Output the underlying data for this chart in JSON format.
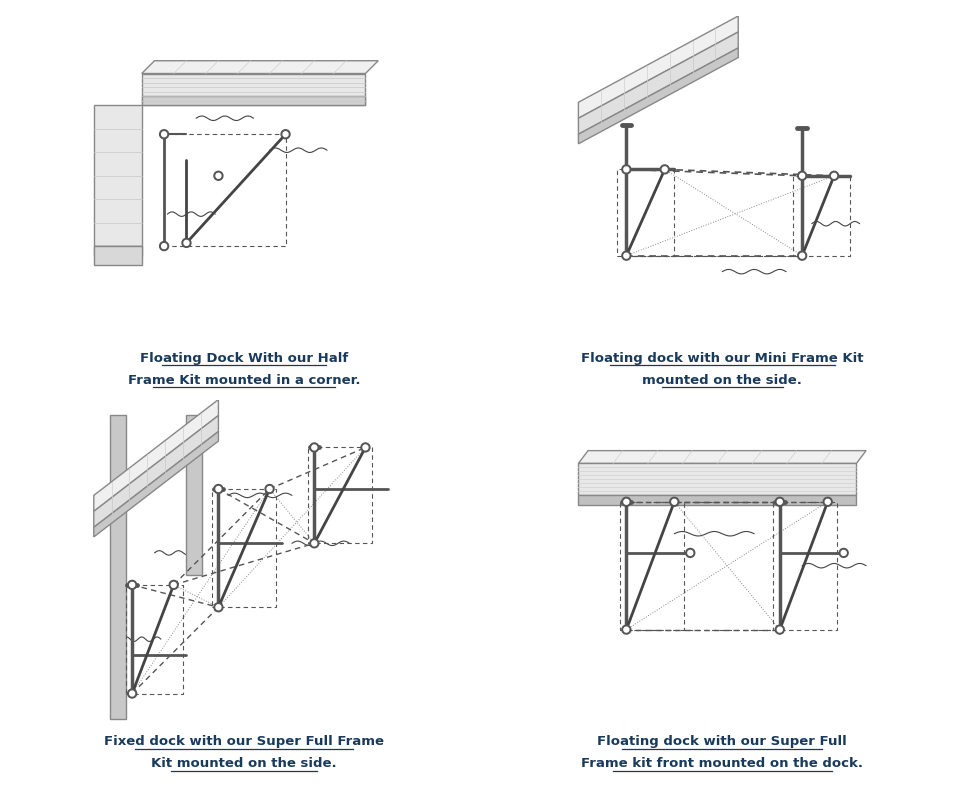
{
  "bg_color": "#ffffff",
  "line_color": "#333333",
  "dock_fill": "#e0e0e0",
  "dock_edge": "#888888",
  "wood_line_color": "#c0c0c0",
  "frame_color": "#555555",
  "water_color": "#444444",
  "text_color": "#1a3a5c",
  "titles": [
    [
      "Floating Dock With our Half",
      "Frame Kit mounted in a corner."
    ],
    [
      "Floating dock with our Mini Frame Kit",
      "mounted on the side."
    ],
    [
      "Fixed dock with our Super Full Frame",
      "Kit mounted on the side."
    ],
    [
      "Floating dock with our Super Full",
      "Frame kit front mounted on the dock."
    ]
  ],
  "figsize": [
    9.76,
    7.99
  ],
  "dpi": 100
}
